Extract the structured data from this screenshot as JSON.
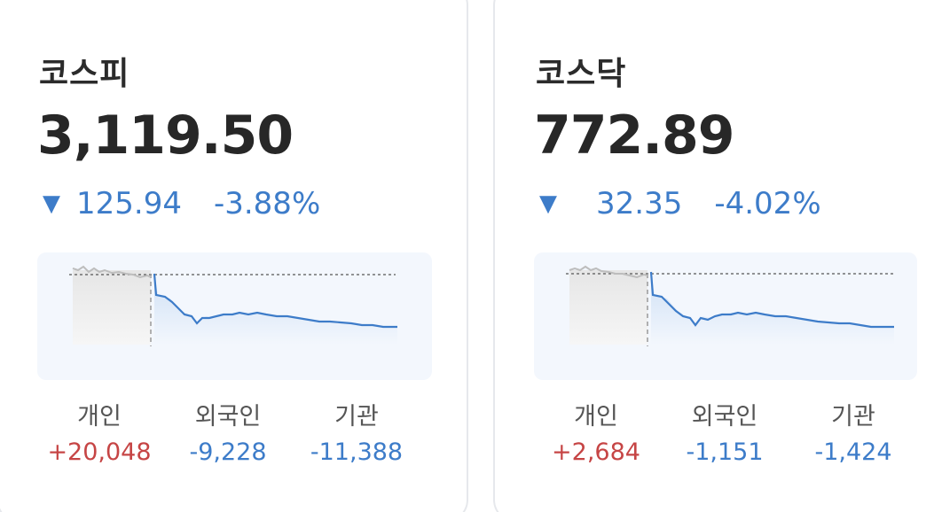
{
  "colors": {
    "up": "#c64545",
    "down": "#3d7cc9",
    "text": "#272727",
    "chart_bg": "#f3f7fd"
  },
  "markets": [
    {
      "name": "코스피",
      "price": "3,119.50",
      "direction_icon": "▼",
      "change": "125.94",
      "change_pct": "-3.88%",
      "investors": [
        {
          "label": "개인",
          "value": "+20,048"
        },
        {
          "label": "외국인",
          "value": "-9,228"
        },
        {
          "label": "기관",
          "value": "-11,388"
        }
      ]
    },
    {
      "name": "코스닥",
      "price": "772.89",
      "direction_icon": "▼",
      "change": "32.35",
      "change_pct": "-4.02%",
      "investors": [
        {
          "label": "개인",
          "value": "+2,684"
        },
        {
          "label": "외국인",
          "value": "-1,151"
        },
        {
          "label": "기관",
          "value": "-1,424"
        }
      ]
    }
  ]
}
